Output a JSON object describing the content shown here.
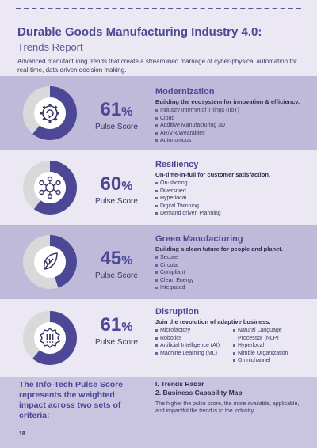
{
  "header": {
    "title": "Durable Goods Manufacturing Industry 4.0:",
    "subtitle": "Trends Report",
    "intro": "Advanced manufacturing trends that create a streamlined marriage of cyber-physical automation for real-time, data-driven decision making."
  },
  "colors": {
    "accent": "#4c4895",
    "donut_track": "#d9d9d9",
    "band_dark": "#bfbad9",
    "band_light": "#ebe8f3"
  },
  "trends": [
    {
      "name": "Modernization",
      "tagline": "Building the ecosystem for innovation & efficiency.",
      "score": 61,
      "score_text": "61",
      "score_unit": "%",
      "score_label": "Pulse Score",
      "icon": "gear-refresh-icon",
      "items": [
        "Industry Internet of Things (IIoT)",
        "Cloud",
        "Additive Manufacturing 3D",
        "AR/VR/Wearables",
        "Autonomous"
      ]
    },
    {
      "name": "Resiliency",
      "tagline": "On-time-in-full for customer satisfaction.",
      "score": 60,
      "score_text": "60",
      "score_unit": "%",
      "score_label": "Pulse Score",
      "icon": "network-hub-icon",
      "items": [
        "On-shoring",
        "Diversified",
        "Hyperlocal",
        "Digital Twinning",
        "Demand driven Planning"
      ]
    },
    {
      "name": "Green Manufacturing",
      "tagline": "Building a clean future for people and planet.",
      "score": 45,
      "score_text": "45",
      "score_unit": "%",
      "score_label": "Pulse Score",
      "icon": "leaf-icon",
      "items": [
        "Secure",
        "Circular",
        "Compliant",
        "Clean Energy",
        "Integrated"
      ]
    },
    {
      "name": "Disruption",
      "tagline": "Join the revolution of adaptive business.",
      "score": 61,
      "score_text": "61",
      "score_unit": "%",
      "score_label": "Pulse Score",
      "icon": "alert-badge-icon",
      "items_col1": [
        "Microfactory",
        "Robotics",
        "Artificial Intelligence (AI)",
        "Machine Learning (ML)"
      ],
      "items_col2": [
        "Natural Language Processor (NLP)",
        "Hyperlocal",
        "Nimble Organization",
        "Omnichannel"
      ]
    }
  ],
  "footer": {
    "summary": "The Info-Tech Pulse Score represents the weighted impact across two sets of criteria:",
    "criteria": [
      "I. Trends Radar",
      "2. Business Capability Map"
    ],
    "note": "The higher the pulse score, the more available, applicable, and impactful the trend is to the industry.",
    "page_number": "18"
  }
}
